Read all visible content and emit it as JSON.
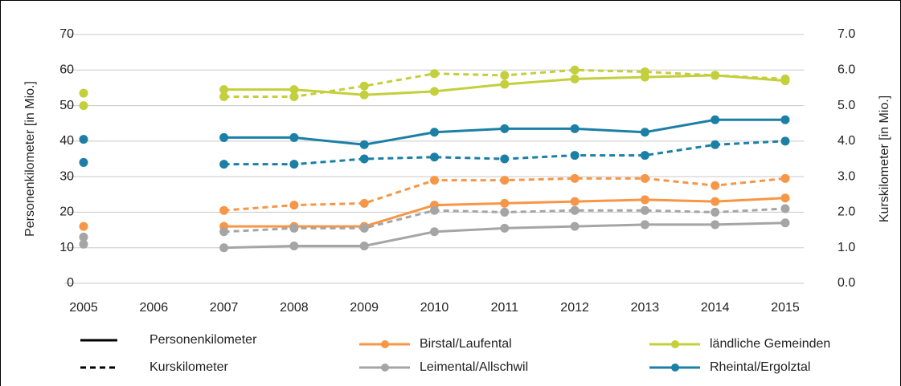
{
  "chart_data": {
    "type": "line",
    "y_label": "Personenkilometer [in Mio.]",
    "y2_label": "Kurskilometer [in Mio.]",
    "categories": [
      "2005",
      "2006",
      "2007",
      "2008",
      "2009",
      "2010",
      "2011",
      "2012",
      "2013",
      "2014",
      "2015"
    ],
    "ylim": [
      0,
      70
    ],
    "yticks": [
      0,
      10,
      20,
      30,
      40,
      50,
      60,
      70
    ],
    "y2lim": [
      0,
      7
    ],
    "y2ticks": [
      {
        "value": 0,
        "label": "0.0"
      },
      {
        "value": 1,
        "label": "1.0"
      },
      {
        "value": 2,
        "label": "2.0"
      },
      {
        "value": 3,
        "label": "3.0"
      },
      {
        "value": 4,
        "label": "4.0"
      },
      {
        "value": 5,
        "label": "5.0"
      },
      {
        "value": 6,
        "label": "6.0"
      },
      {
        "value": 7,
        "label": "7.0"
      }
    ],
    "grid": true,
    "line_styles": [
      {
        "name": "Personenkilometer",
        "dash": "none"
      },
      {
        "name": "Kurskilometer",
        "dash": "7 5"
      }
    ],
    "series": [
      {
        "name": "Birstal/Laufental",
        "color": "#f79646",
        "values": [
          16,
          null,
          16,
          16,
          16,
          22,
          22.5,
          23,
          23.5,
          23,
          24
        ],
        "y2_values": [
          null,
          null,
          2.05,
          2.2,
          2.25,
          2.9,
          2.9,
          2.95,
          2.95,
          2.75,
          2.95
        ]
      },
      {
        "name": "Leimental/Allschwil",
        "color": "#a5a5a5",
        "values": [
          11,
          null,
          10,
          10.5,
          10.5,
          14.5,
          15.5,
          16,
          16.5,
          16.5,
          17
        ],
        "y2_values": [
          1.3,
          null,
          1.45,
          1.55,
          1.55,
          2.05,
          2.0,
          2.05,
          2.05,
          2.0,
          2.1
        ]
      },
      {
        "name": "ländliche Gemeinden",
        "color": "#c4cf3c",
        "values": [
          53.5,
          null,
          54.5,
          54.5,
          53,
          54,
          56,
          57.5,
          58,
          58.5,
          57
        ],
        "y2_values": [
          5.0,
          null,
          5.25,
          5.25,
          5.55,
          5.9,
          5.85,
          6.0,
          5.95,
          5.85,
          5.75
        ]
      },
      {
        "name": "Rheintal/Ergolztal",
        "color": "#1b7fa6",
        "values": [
          40.5,
          null,
          41,
          41,
          39,
          42.5,
          43.5,
          43.5,
          42.5,
          46,
          46
        ],
        "y2_values": [
          3.4,
          null,
          3.35,
          3.35,
          3.5,
          3.55,
          3.5,
          3.6,
          3.6,
          3.9,
          4.0
        ]
      }
    ]
  }
}
